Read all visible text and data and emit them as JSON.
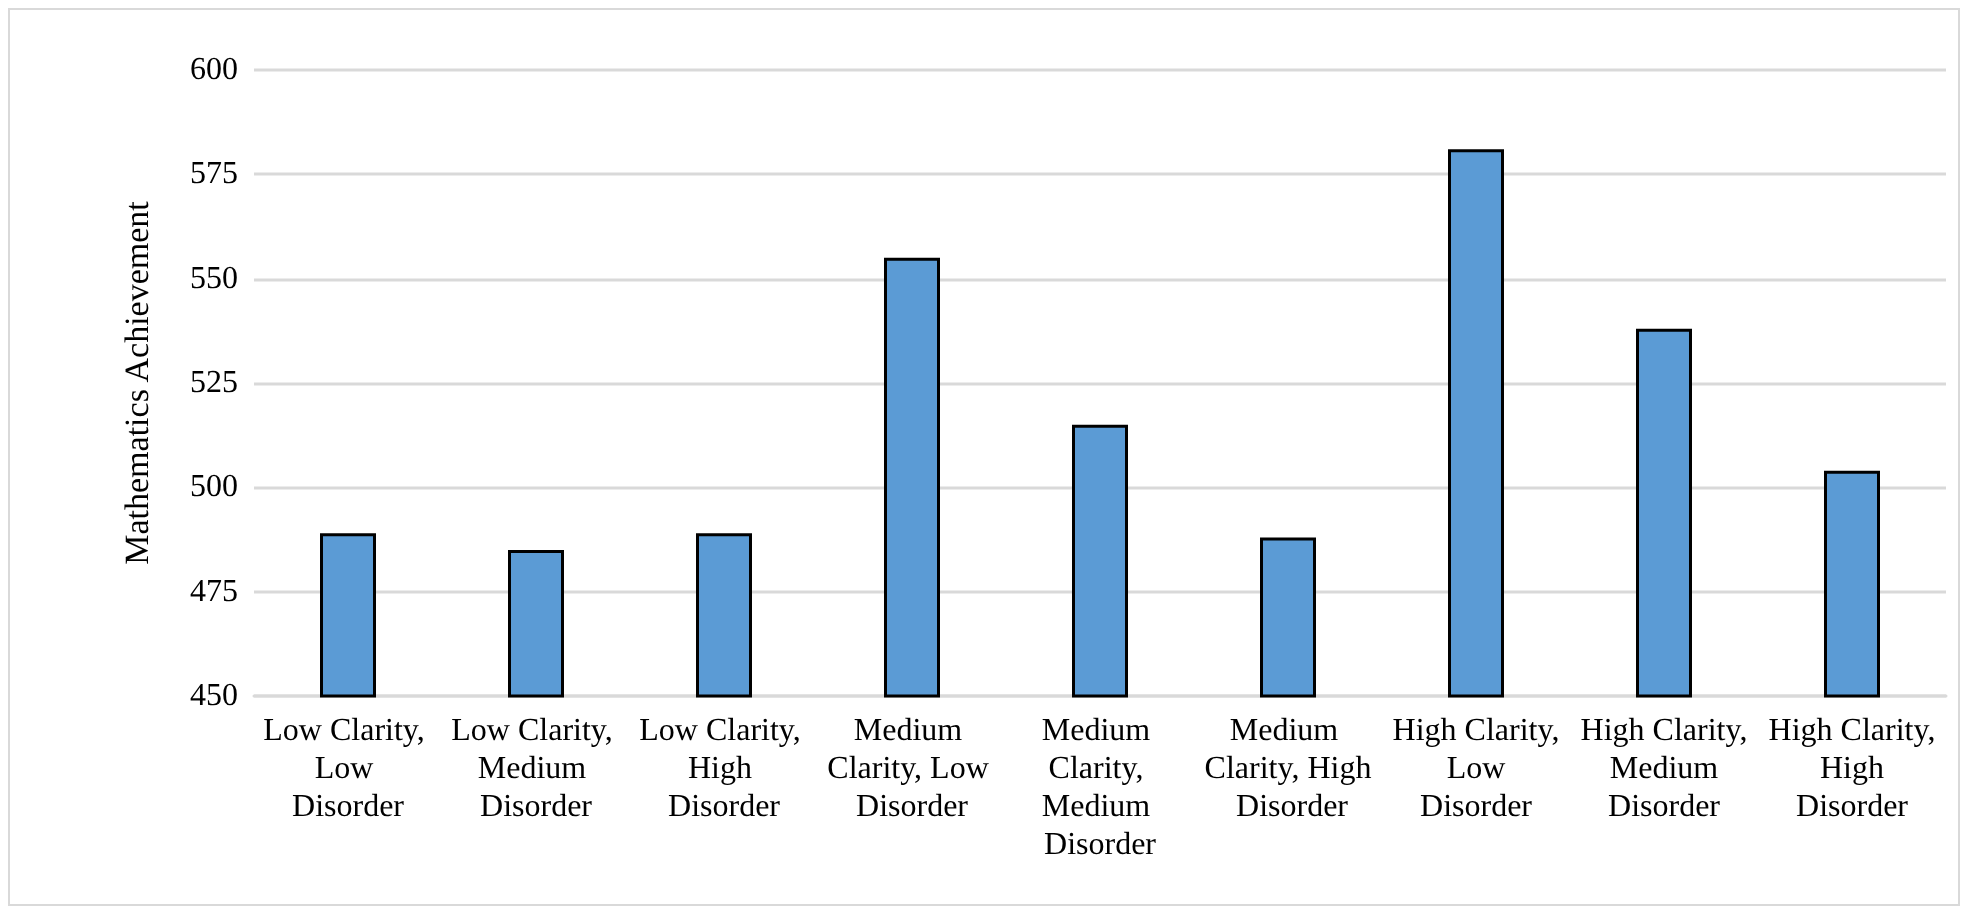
{
  "chart_data": {
    "type": "bar",
    "ylabel": "Mathematics Achievement",
    "categories": [
      "Low Clarity, Low Disorder",
      "Low Clarity, Medium Disorder",
      "Low Clarity, High Disorder",
      "Medium Clarity, Low Disorder",
      "Medium Clarity, Medium Disorder",
      "Medium Clarity, High Disorder",
      "High Clarity, Low Disorder",
      "High Clarity, Medium Disorder",
      "High Clarity, High Disorder"
    ],
    "values": [
      489,
      485,
      489,
      555,
      515,
      488,
      581,
      538,
      504
    ],
    "color": "#5b9bd5",
    "ylim": [
      450,
      600
    ],
    "yticks": [
      450,
      475,
      500,
      525,
      550,
      575,
      600
    ],
    "grid": "y"
  }
}
